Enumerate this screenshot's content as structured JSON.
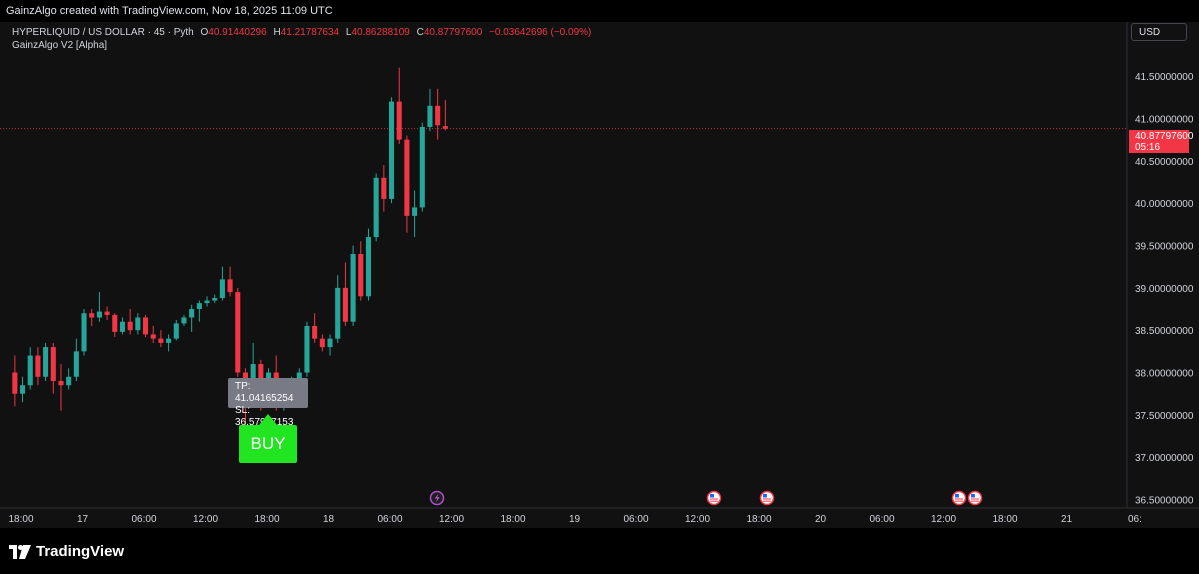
{
  "watermark_header": "GainzAlgo created with TradingView.com, Nov 18, 2025 11:09 UTC",
  "legend": {
    "symbol": "HYPERLIQUID / US DOLLAR · 45 · Pyth",
    "o_label": "O",
    "o_value": "40.91440296",
    "h_label": "H",
    "h_value": "41.21787634",
    "l_label": "L",
    "l_value": "40.86288109",
    "c_label": "C",
    "c_value": "40.87797600",
    "change": "−0.03642696 (−0.09%)"
  },
  "indicator_label": "GainzAlgo V2 [Alpha]",
  "currency_button": "USD",
  "brand": "TradingView",
  "signal": {
    "label": "BUY",
    "tp": "TP: 41.04165254",
    "sl": "SL: 36.57937153"
  },
  "last_price": {
    "value": "40.87797600",
    "countdown": "05:16"
  },
  "colors": {
    "up": "#26a69a",
    "down": "#f23645",
    "buy": "#22e522",
    "background": "#111111"
  },
  "chart_data": {
    "type": "candlestick",
    "title": "HYPERLIQUID / US DOLLAR · 45 · Pyth",
    "y_range": [
      36.4,
      41.75
    ],
    "y_ticks": [
      "41.50000000",
      "41.00000000",
      "40.50000000",
      "40.00000000",
      "39.50000000",
      "39.00000000",
      "38.50000000",
      "38.00000000",
      "37.50000000",
      "37.00000000",
      "36.50000000"
    ],
    "y_tick_values": [
      41.5,
      41.0,
      40.5,
      40.0,
      39.5,
      39.0,
      38.5,
      38.0,
      37.5,
      37.0,
      36.5
    ],
    "x_ticks": [
      "18:00",
      "17",
      "06:00",
      "12:00",
      "18:00",
      "18",
      "06:00",
      "12:00",
      "18:00",
      "19",
      "06:00",
      "12:00",
      "18:00",
      "20",
      "06:00",
      "12:00",
      "18:00",
      "21",
      "06:"
    ],
    "bars_per_x_tick": 8,
    "candles": [
      [
        38.0,
        38.2,
        37.6,
        37.75
      ],
      [
        37.75,
        37.95,
        37.65,
        37.85
      ],
      [
        37.85,
        38.3,
        37.8,
        38.2
      ],
      [
        38.2,
        38.3,
        37.85,
        37.95
      ],
      [
        37.95,
        38.35,
        37.9,
        38.3
      ],
      [
        38.3,
        38.35,
        37.75,
        37.9
      ],
      [
        37.9,
        38.1,
        37.55,
        37.85
      ],
      [
        37.85,
        38.05,
        37.8,
        37.95
      ],
      [
        37.95,
        38.4,
        37.9,
        38.25
      ],
      [
        38.25,
        38.75,
        38.2,
        38.7
      ],
      [
        38.7,
        38.75,
        38.55,
        38.65
      ],
      [
        38.65,
        38.95,
        38.6,
        38.72
      ],
      [
        38.72,
        38.78,
        38.62,
        38.68
      ],
      [
        38.68,
        38.7,
        38.42,
        38.48
      ],
      [
        38.48,
        38.65,
        38.45,
        38.6
      ],
      [
        38.6,
        38.75,
        38.45,
        38.5
      ],
      [
        38.5,
        38.7,
        38.45,
        38.65
      ],
      [
        38.65,
        38.68,
        38.42,
        38.45
      ],
      [
        38.45,
        38.55,
        38.35,
        38.4
      ],
      [
        38.4,
        38.5,
        38.3,
        38.35
      ],
      [
        38.35,
        38.45,
        38.25,
        38.4
      ],
      [
        38.4,
        38.62,
        38.38,
        38.58
      ],
      [
        38.58,
        38.68,
        38.55,
        38.65
      ],
      [
        38.65,
        38.8,
        38.48,
        38.75
      ],
      [
        38.75,
        38.85,
        38.6,
        38.82
      ],
      [
        38.82,
        38.9,
        38.78,
        38.85
      ],
      [
        38.85,
        38.92,
        38.82,
        38.88
      ],
      [
        38.88,
        39.25,
        38.85,
        39.1
      ],
      [
        39.1,
        39.25,
        38.9,
        38.95
      ],
      [
        38.95,
        39.0,
        37.95,
        38.0
      ],
      [
        38.0,
        38.05,
        37.35,
        37.7
      ],
      [
        37.7,
        38.35,
        37.65,
        38.1
      ],
      [
        38.1,
        38.15,
        37.55,
        37.7
      ],
      [
        37.7,
        38.05,
        37.65,
        38.0
      ],
      [
        38.0,
        38.2,
        37.55,
        37.6
      ],
      [
        37.6,
        37.9,
        37.55,
        37.85
      ],
      [
        37.85,
        37.95,
        37.7,
        37.9
      ],
      [
        37.9,
        38.05,
        37.85,
        38.0
      ],
      [
        38.0,
        38.6,
        37.95,
        38.55
      ],
      [
        38.55,
        38.7,
        38.35,
        38.4
      ],
      [
        38.4,
        38.45,
        38.25,
        38.3
      ],
      [
        38.3,
        38.45,
        38.2,
        38.4
      ],
      [
        38.4,
        39.15,
        38.35,
        39.0
      ],
      [
        39.0,
        39.3,
        38.55,
        38.6
      ],
      [
        38.6,
        39.5,
        38.55,
        39.4
      ],
      [
        39.4,
        39.55,
        38.85,
        38.9
      ],
      [
        38.9,
        39.7,
        38.85,
        39.6
      ],
      [
        39.6,
        40.35,
        39.55,
        40.3
      ],
      [
        40.3,
        40.45,
        39.9,
        40.05
      ],
      [
        40.05,
        41.25,
        40.0,
        41.2
      ],
      [
        41.2,
        41.6,
        40.7,
        40.75
      ],
      [
        40.75,
        40.8,
        39.65,
        39.85
      ],
      [
        39.85,
        40.15,
        39.6,
        39.95
      ],
      [
        39.95,
        40.95,
        39.9,
        40.9
      ],
      [
        40.9,
        41.35,
        40.85,
        41.15
      ],
      [
        41.15,
        41.35,
        40.75,
        40.92
      ],
      [
        40.91,
        41.22,
        40.86,
        40.88
      ]
    ]
  }
}
